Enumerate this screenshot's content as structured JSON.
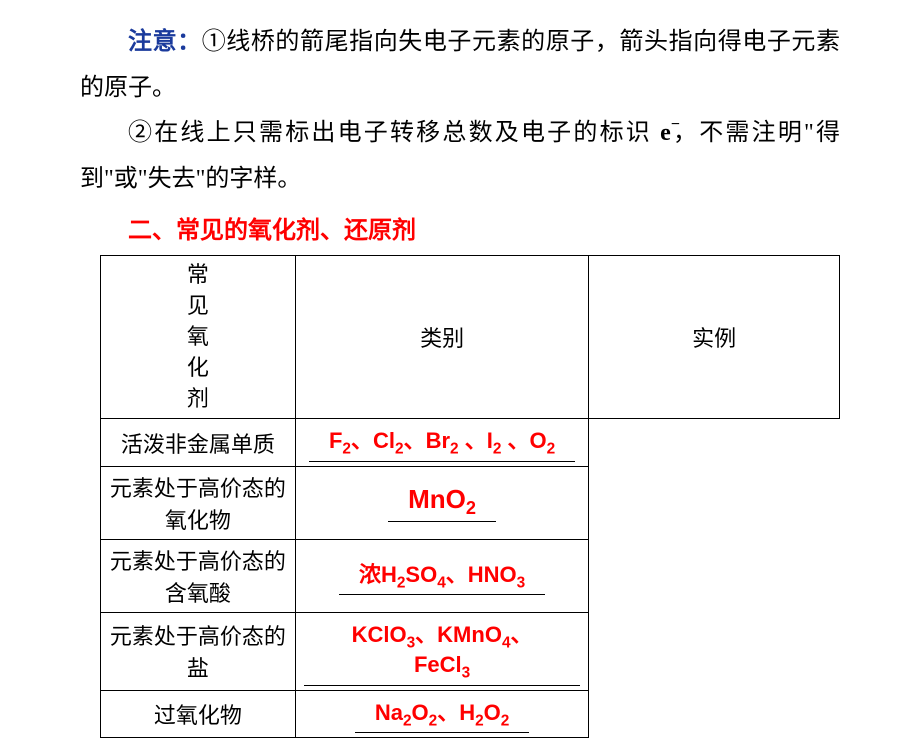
{
  "para1": {
    "prefix": "注意：",
    "text": "①线桥的箭尾指向失电子元素的原子，箭头指向得电子元素的原子。"
  },
  "para2": {
    "before": "②在线上只需标出电子转移总数及电子的标识 ",
    "symbol_b": "e",
    "symbol_sup": "−",
    "after": "，不需注明\"得到\"或\"失去\"的字样。"
  },
  "heading": "二、常见的氧化剂、还原剂",
  "table": {
    "row_header": "常见氧化剂",
    "header_left": "类别",
    "header_right": "实例",
    "rows": [
      {
        "category": "活泼非金属单质",
        "example_html": "F<sub>2</sub>、Cl<sub>2</sub>、Br<sub>2</sub> 、I<sub>2</sub> 、O<sub>2</sub>",
        "tall": false
      },
      {
        "category": "元素处于高价态的氧化物",
        "example_html": "MnO<sub>2</sub>",
        "tall": true,
        "big": true
      },
      {
        "category": "元素处于高价态的含氧酸",
        "example_html": "浓H<sub>2</sub>SO<sub>4</sub>、HNO<sub>3</sub>",
        "tall": true
      },
      {
        "category": "元素处于高价态的盐",
        "example_html": "KClO<sub>3</sub>、KMnO<sub>4</sub>、FeCl<sub>3</sub>",
        "tall": false
      },
      {
        "category": "过氧化物",
        "example_html": "Na<sub>2</sub>O<sub>2</sub>、H<sub>2</sub>O<sub>2</sub>",
        "tall": false
      }
    ]
  },
  "colors": {
    "blue": "#1a3a9c",
    "red": "#ff0000",
    "black": "#000000",
    "bg": "#ffffff"
  }
}
